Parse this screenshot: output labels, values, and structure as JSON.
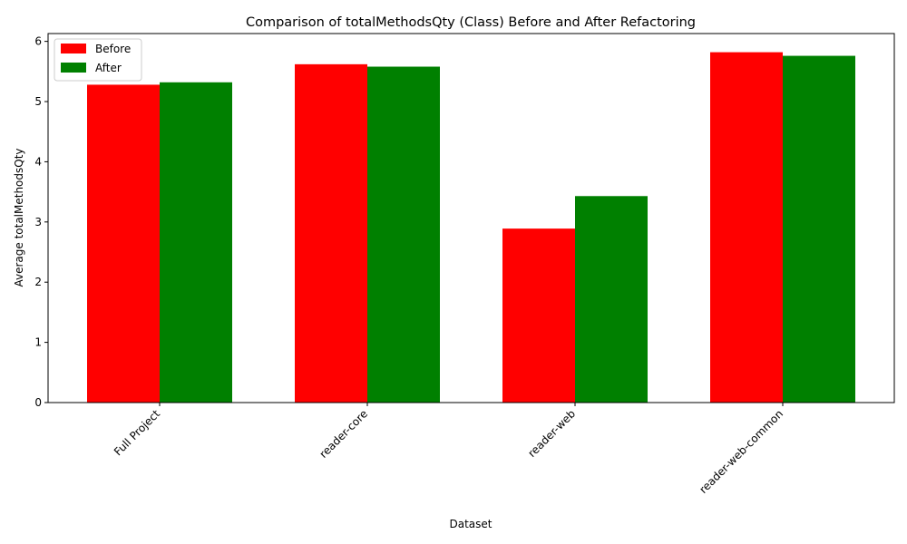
{
  "chart_data": {
    "type": "bar",
    "title": "Comparison of totalMethodsQty (Class) Before and After Refactoring",
    "xlabel": "Dataset",
    "ylabel": "Average totalMethodsQty",
    "categories": [
      "Full Project",
      "reader-core",
      "reader-web",
      "reader-web-common"
    ],
    "series": [
      {
        "name": "Before",
        "color": "#ff0000",
        "values": [
          5.28,
          5.62,
          2.89,
          5.82
        ]
      },
      {
        "name": "After",
        "color": "#008000",
        "values": [
          5.32,
          5.58,
          3.43,
          5.76
        ]
      }
    ],
    "ylim": [
      0,
      6.13
    ],
    "yticks": [
      0,
      1,
      2,
      3,
      4,
      5,
      6
    ],
    "grid": false,
    "legend": "top-left"
  }
}
